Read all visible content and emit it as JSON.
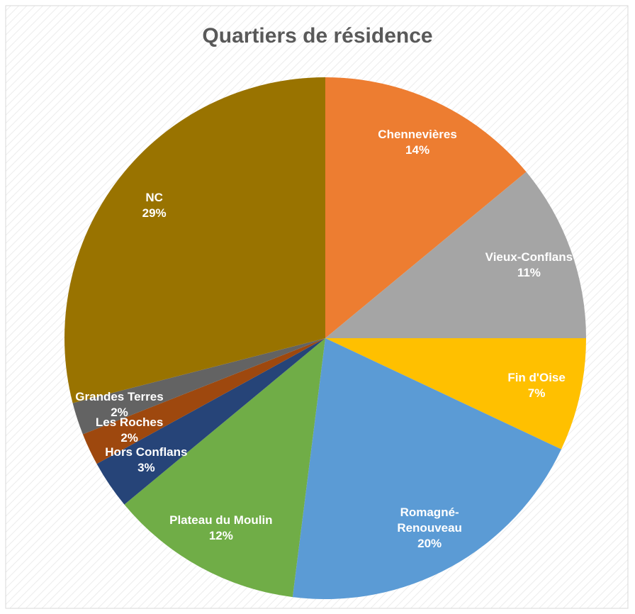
{
  "chart_data": {
    "type": "pie",
    "title": "Quartiers de résidence",
    "categories": [
      "Chennevières",
      "Vieux-Conflans",
      "Fin d'Oise",
      "Romagné-Renouveau",
      "Plateau du Moulin",
      "Hors Conflans",
      "Les Roches",
      "Grandes Terres",
      "NC"
    ],
    "values": [
      14,
      11,
      7,
      20,
      12,
      3,
      2,
      2,
      29
    ],
    "value_labels": [
      "14%",
      "11%",
      "7%",
      "20%",
      "12%",
      "3%",
      "2%",
      "2%",
      "29%"
    ],
    "colors": [
      "#ED7D31",
      "#A5A5A5",
      "#FFC000",
      "#5B9BD5",
      "#70AD47",
      "#264478",
      "#9E480E",
      "#636363",
      "#997300"
    ]
  }
}
